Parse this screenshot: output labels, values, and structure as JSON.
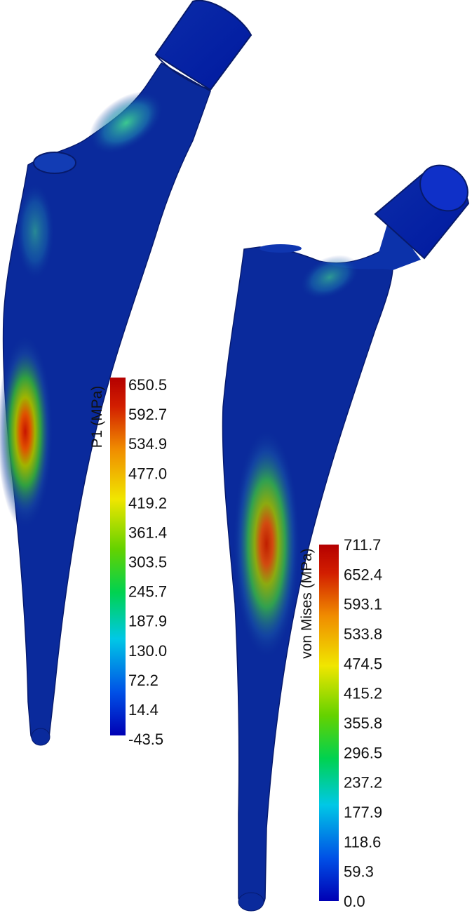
{
  "left_model": {
    "name": "stem-p1",
    "colorbar": {
      "title": "P1 (MPa)",
      "ticks": [
        "650.5",
        "592.7",
        "534.9",
        "477.0",
        "419.2",
        "361.4",
        "303.5",
        "245.7",
        "187.9",
        "130.0",
        "72.2",
        "14.4",
        "-43.5"
      ]
    }
  },
  "right_model": {
    "name": "stem-von-mises",
    "colorbar": {
      "title": "von Mises (MPa)",
      "ticks": [
        "711.7",
        "652.4",
        "593.1",
        "533.8",
        "474.5",
        "415.2",
        "355.8",
        "296.5",
        "237.2",
        "177.9",
        "118.6",
        "59.3",
        "0.0"
      ]
    }
  },
  "colormap": [
    "#0000b4",
    "#0050e6",
    "#00c8e6",
    "#00d250",
    "#64d200",
    "#f0e600",
    "#f08c00",
    "#d21e00",
    "#b40000"
  ]
}
